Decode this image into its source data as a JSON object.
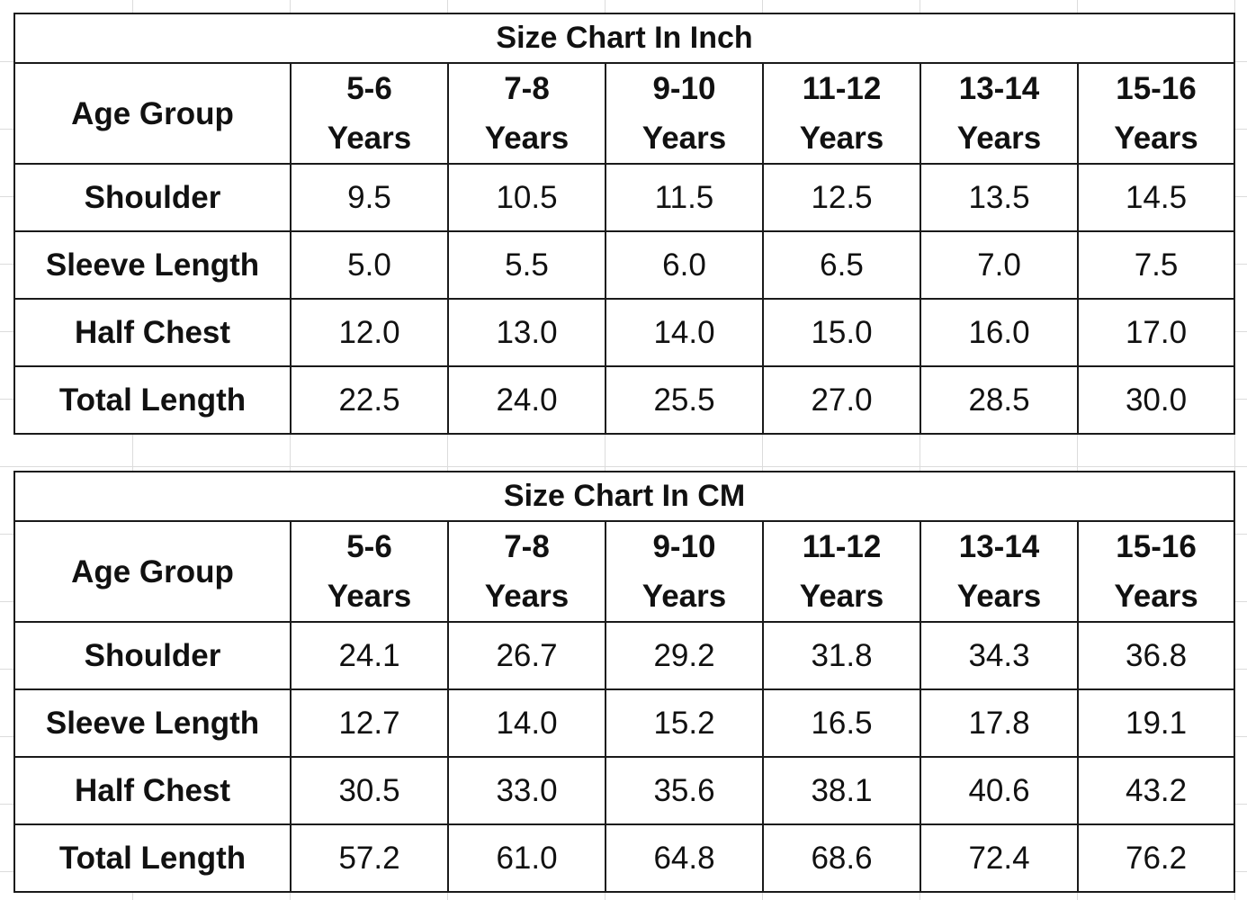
{
  "tables": [
    {
      "title": "Size Chart In Inch",
      "header_label": "Age Group",
      "age_groups": [
        {
          "range": "5-6",
          "unit": "Years"
        },
        {
          "range": "7-8",
          "unit": "Years"
        },
        {
          "range": "9-10",
          "unit": "Years"
        },
        {
          "range": "11-12",
          "unit": "Years"
        },
        {
          "range": "13-14",
          "unit": "Years"
        },
        {
          "range": "15-16",
          "unit": "Years"
        }
      ],
      "rows": [
        {
          "label": "Shoulder",
          "values": [
            "9.5",
            "10.5",
            "11.5",
            "12.5",
            "13.5",
            "14.5"
          ]
        },
        {
          "label": "Sleeve Length",
          "values": [
            "5.0",
            "5.5",
            "6.0",
            "6.5",
            "7.0",
            "7.5"
          ]
        },
        {
          "label": "Half Chest",
          "values": [
            "12.0",
            "13.0",
            "14.0",
            "15.0",
            "16.0",
            "17.0"
          ]
        },
        {
          "label": "Total Length",
          "values": [
            "22.5",
            "24.0",
            "25.5",
            "27.0",
            "28.5",
            "30.0"
          ]
        }
      ]
    },
    {
      "title": "Size Chart In CM",
      "header_label": "Age Group",
      "age_groups": [
        {
          "range": "5-6",
          "unit": "Years"
        },
        {
          "range": "7-8",
          "unit": "Years"
        },
        {
          "range": "9-10",
          "unit": "Years"
        },
        {
          "range": "11-12",
          "unit": "Years"
        },
        {
          "range": "13-14",
          "unit": "Years"
        },
        {
          "range": "15-16",
          "unit": "Years"
        }
      ],
      "rows": [
        {
          "label": "Shoulder",
          "values": [
            "24.1",
            "26.7",
            "29.2",
            "31.8",
            "34.3",
            "36.8"
          ]
        },
        {
          "label": "Sleeve Length",
          "values": [
            "12.7",
            "14.0",
            "15.2",
            "16.5",
            "17.8",
            "19.1"
          ]
        },
        {
          "label": "Half Chest",
          "values": [
            "30.5",
            "33.0",
            "35.6",
            "38.1",
            "40.6",
            "43.2"
          ]
        },
        {
          "label": "Total Length",
          "values": [
            "57.2",
            "61.0",
            "64.8",
            "68.6",
            "72.4",
            "76.2"
          ]
        }
      ]
    }
  ]
}
